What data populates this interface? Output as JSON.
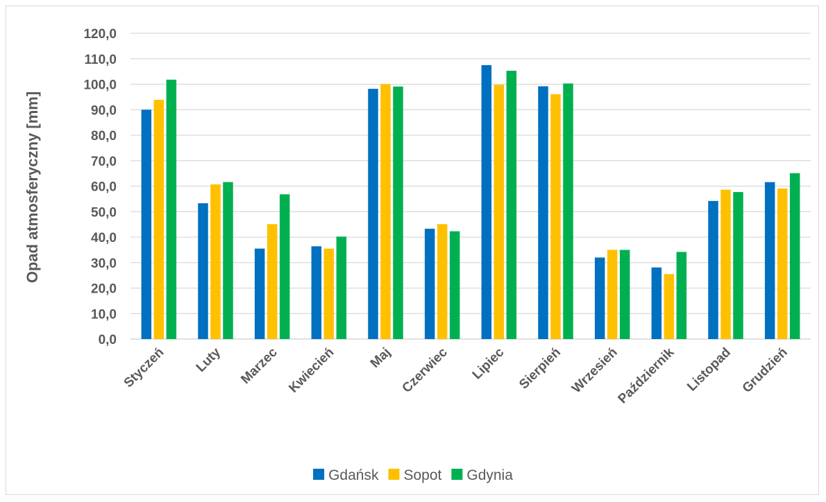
{
  "chart_data": {
    "type": "bar",
    "title": "",
    "xlabel": "",
    "ylabel": "Opad atmosferyczny [mm]",
    "ylim": [
      0,
      120
    ],
    "ytick_step": 10,
    "ytick_labels": [
      "0,0",
      "10,0",
      "20,0",
      "30,0",
      "40,0",
      "50,0",
      "60,0",
      "70,0",
      "80,0",
      "90,0",
      "100,0",
      "110,0",
      "120,0"
    ],
    "grid": true,
    "legend_position": "bottom",
    "categories": [
      "Styczeń",
      "Luty",
      "Marzec",
      "Kwiecień",
      "Maj",
      "Czerwiec",
      "Lipiec",
      "Sierpień",
      "Wrzesień",
      "Październik",
      "Listopad",
      "Grudzień"
    ],
    "series": [
      {
        "name": "Gdańsk",
        "color": "#0070c0",
        "values": [
          90.0,
          53.3,
          35.5,
          36.4,
          98.2,
          43.3,
          107.5,
          99.2,
          32.0,
          28.1,
          54.2,
          61.6
        ]
      },
      {
        "name": "Sopot",
        "color": "#ffc000",
        "values": [
          93.9,
          60.7,
          45.1,
          35.5,
          100.0,
          45.1,
          99.8,
          96.1,
          35.0,
          25.5,
          58.6,
          59.1
        ]
      },
      {
        "name": "Gdynia",
        "color": "#00b050",
        "values": [
          101.8,
          61.6,
          56.8,
          40.2,
          99.1,
          42.3,
          105.3,
          100.3,
          35.0,
          34.2,
          57.7,
          65.1
        ]
      }
    ]
  }
}
